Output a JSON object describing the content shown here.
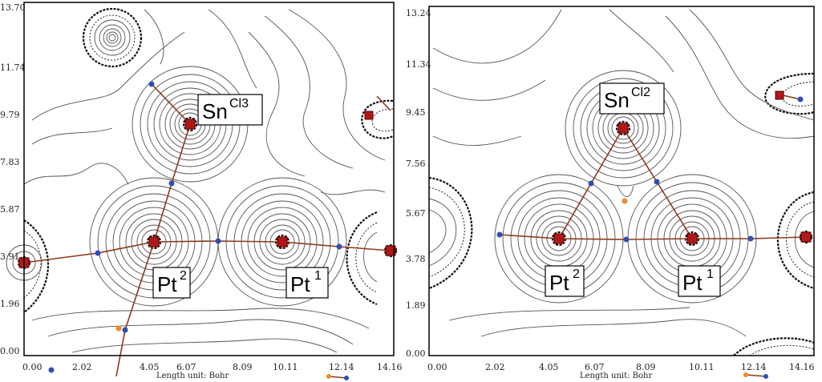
{
  "panels": [
    {
      "y_ticks": [
        "13.70",
        "11.74",
        "9.79",
        "7.83",
        "5.87",
        "3.91",
        "1.96",
        "0.00"
      ],
      "x_ticks": [
        "0.00",
        "2.02",
        "4.05",
        "6.07",
        "8.09",
        "10.11",
        "12.14",
        "14.16"
      ],
      "unit_label": "Length unit: Bohr",
      "labels": {
        "sn": {
          "base": "Sn",
          "sup": "Cl3"
        },
        "pt2": {
          "base": "Pt",
          "sup": "2"
        },
        "pt1": {
          "base": "Pt",
          "sup": "1"
        }
      },
      "colors": {
        "bond_path": "#8b3a1a",
        "bond_critical_point": "#2f4fb5",
        "ring_critical_point": "#f08a2a",
        "nucleus": "#b01818"
      }
    },
    {
      "y_ticks": [
        "13.24",
        "11.34",
        "9.45",
        "7.56",
        "5.67",
        "3.78",
        "1.89",
        "0.00"
      ],
      "x_ticks": [
        "0.00",
        "2.02",
        "4.05",
        "6.07",
        "8.09",
        "10.11",
        "12.14",
        "14.16"
      ],
      "unit_label": "Length unit: Bohr",
      "labels": {
        "sn": {
          "base": "Sn",
          "sup": "Cl2"
        },
        "pt2": {
          "base": "Pt",
          "sup": "2"
        },
        "pt1": {
          "base": "Pt",
          "sup": "1"
        }
      },
      "colors": {
        "bond_path": "#8b3a1a",
        "bond_critical_point": "#2f4fb5",
        "ring_critical_point": "#f08a2a",
        "nucleus": "#b01818"
      }
    }
  ]
}
